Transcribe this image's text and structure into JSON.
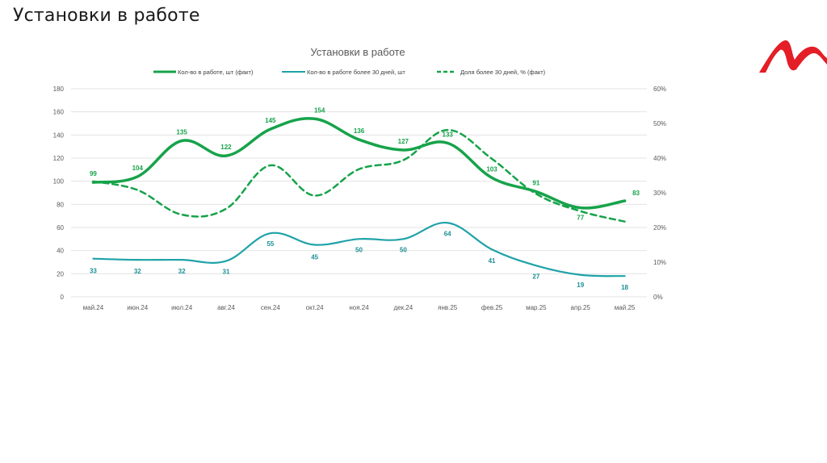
{
  "slide": {
    "title": "Установки в работе",
    "logo": "brand-logo-red-m"
  },
  "colors": {
    "green": "#16a34a",
    "teal": "#1fa2a8",
    "grid": "#e3e3e3",
    "axis_text": "#595959",
    "logo_red": "#e41e26"
  },
  "chart_data": {
    "type": "line",
    "title": "Установки в работе",
    "xlabel": "",
    "ylabel": "",
    "categories": [
      "май.24",
      "июн.24",
      "июл.24",
      "авг.24",
      "сен.24",
      "окт.24",
      "ноя.24",
      "дек.24",
      "янв.25",
      "фев.25",
      "мар.25",
      "апр.25",
      "май.25"
    ],
    "y_left": {
      "ylim": [
        0,
        180
      ],
      "ticks": [
        0,
        20,
        40,
        60,
        80,
        100,
        120,
        140,
        160,
        180
      ],
      "tick_labels": [
        "0",
        "20",
        "40",
        "60",
        "80",
        "100",
        "120",
        "140",
        "160",
        "180"
      ]
    },
    "y_right": {
      "ylim": [
        0,
        60
      ],
      "ticks": [
        0,
        10,
        20,
        30,
        40,
        50,
        60
      ],
      "tick_labels": [
        "0%",
        "10%",
        "20%",
        "30%",
        "40%",
        "50%",
        "60%"
      ]
    },
    "grid": true,
    "legend_position": "top",
    "series": [
      {
        "name": "Кол-во в работе, шт (факт)",
        "axis": "left",
        "style": "solid-thick",
        "color": "#16a34a",
        "values": [
          99,
          104,
          135,
          122,
          145,
          154,
          136,
          127,
          133,
          103,
          91,
          77,
          83
        ],
        "labels": [
          "99",
          "104",
          "135",
          "122",
          "145",
          "154",
          "136",
          "127",
          "133",
          "103",
          "91",
          "77",
          "83"
        ]
      },
      {
        "name": "Кол-во в работе более 30 дней, шт",
        "axis": "left",
        "style": "solid-thin",
        "color": "#1fa2a8",
        "values": [
          33,
          32,
          32,
          31,
          55,
          45,
          50,
          50,
          64,
          41,
          27,
          19,
          18
        ],
        "labels": [
          "33",
          "32",
          "32",
          "31",
          "55",
          "45",
          "50",
          "50",
          "64",
          "41",
          "27",
          "19",
          "18"
        ]
      },
      {
        "name": "Доля более 30 дней, % (факт)",
        "axis": "right",
        "style": "dashed",
        "color": "#16a34a",
        "values": [
          33.3,
          30.8,
          23.7,
          25.4,
          37.9,
          29.2,
          36.8,
          39.4,
          48.1,
          39.8,
          29.7,
          24.7,
          21.7
        ]
      }
    ]
  }
}
